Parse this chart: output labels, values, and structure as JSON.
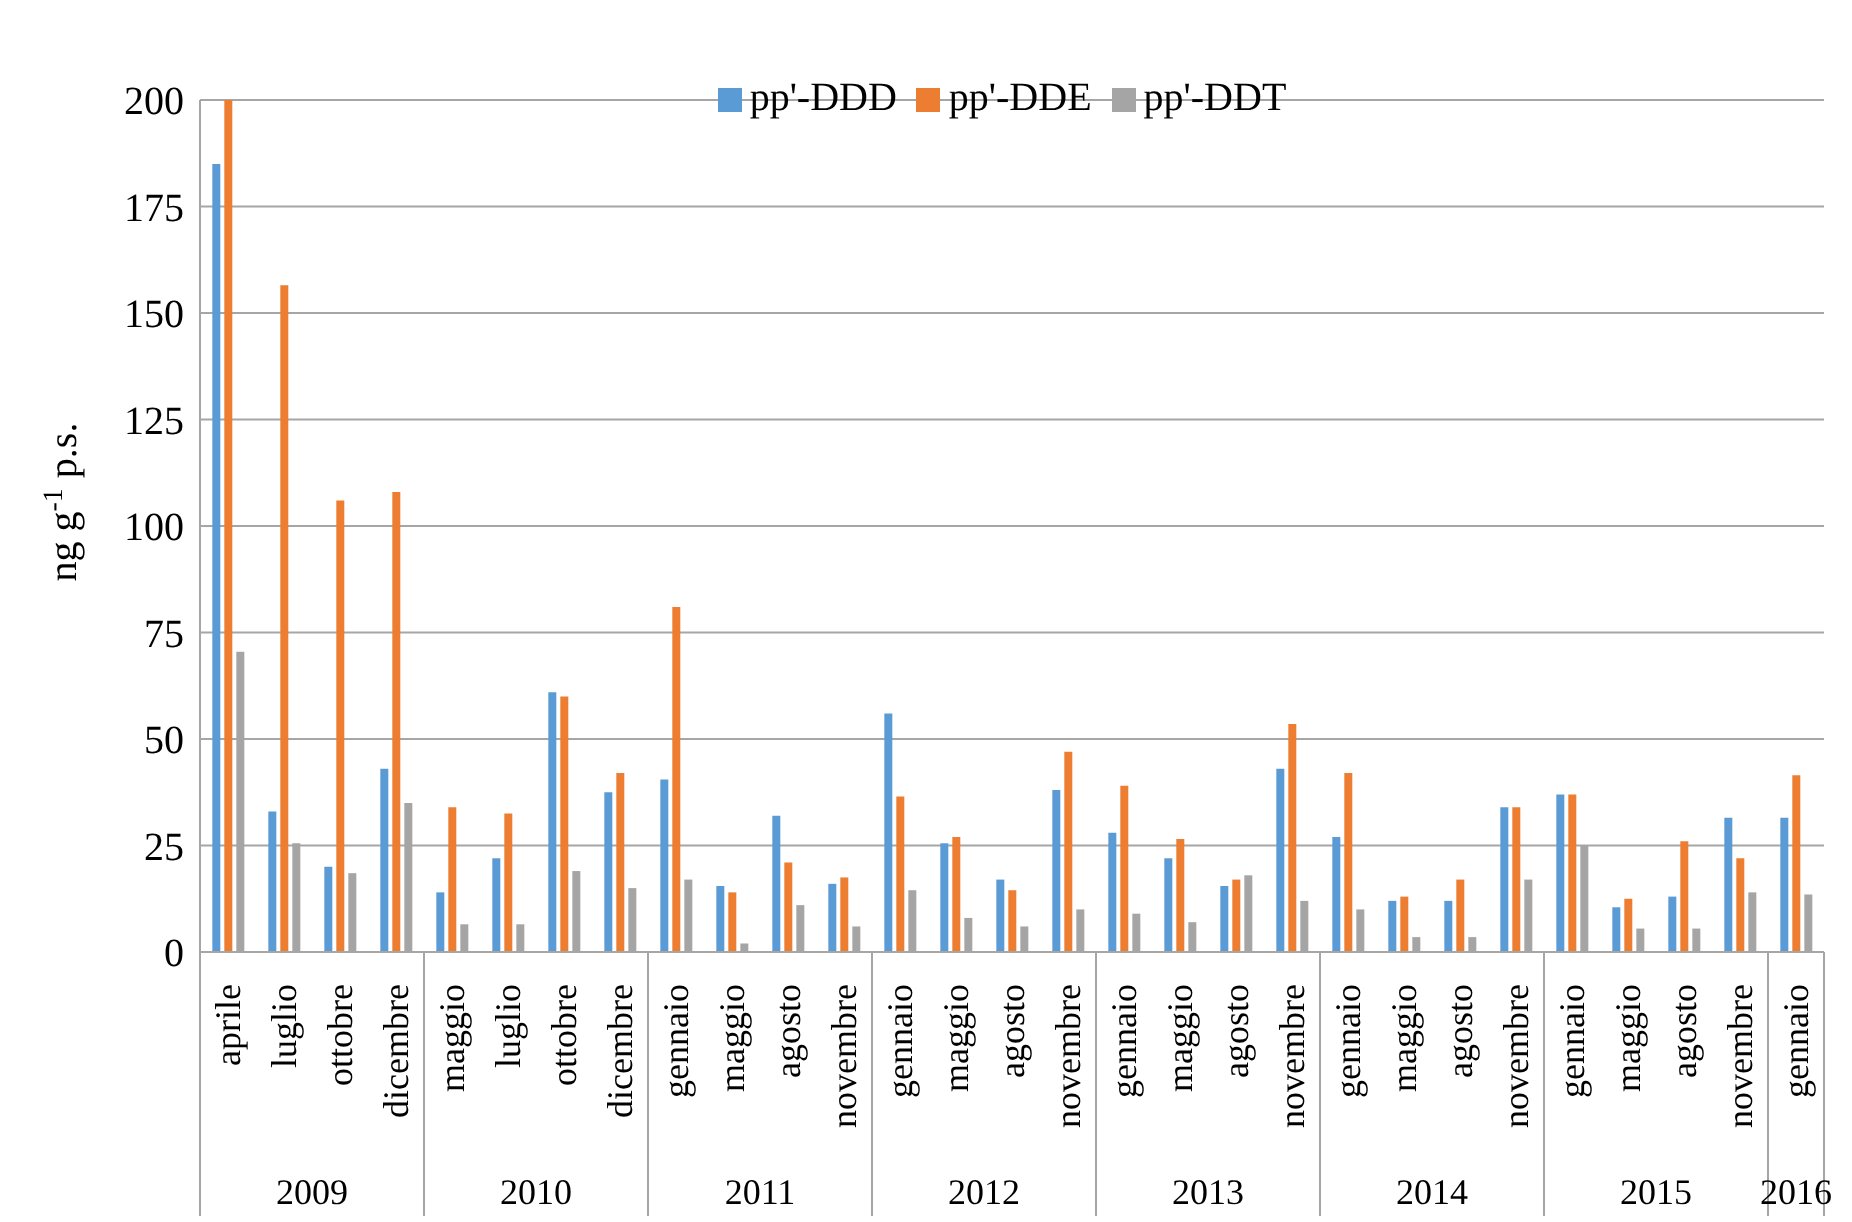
{
  "chart_data": {
    "type": "bar",
    "ylabel": "ng g$^{-1}$ p.s.",
    "categories": [
      "aprile",
      "luglio",
      "ottobre",
      "dicembre",
      "maggio",
      "luglio",
      "ottobre",
      "dicembre",
      "gennaio",
      "maggio",
      "agosto",
      "novembre",
      "gennaio",
      "maggio",
      "agosto",
      "novembre",
      "gennaio",
      "maggio",
      "agosto",
      "novembre",
      "gennaio",
      "maggio",
      "agosto",
      "novembre",
      "gennaio",
      "maggio",
      "agosto",
      "novembre",
      "gennaio"
    ],
    "series": [
      {
        "name": "pp'-DDD",
        "color": "#5b9bd5",
        "values": [
          185,
          33,
          20,
          43,
          14,
          22,
          61,
          37.5,
          40.5,
          15.5,
          32,
          16,
          56,
          25.5,
          17,
          38,
          28,
          22,
          15.5,
          43,
          27,
          12,
          12,
          34,
          37,
          10.5,
          13,
          31.5,
          31.5
        ]
      },
      {
        "name": "pp'-DDE",
        "color": "#ed7d31",
        "values": [
          200,
          156.5,
          106,
          108,
          34,
          32.5,
          60,
          42,
          81,
          14,
          21,
          17.5,
          36.5,
          27,
          14.5,
          47,
          39,
          26.5,
          17,
          53.5,
          42,
          13,
          17,
          34,
          37,
          12.5,
          26,
          22,
          41.5
        ]
      },
      {
        "name": "pp'-DDT",
        "color": "#a5a5a5",
        "values": [
          70.5,
          25.5,
          18.5,
          35,
          6.5,
          6.5,
          19,
          15,
          17,
          2,
          11,
          6,
          14.5,
          8,
          6,
          10,
          9,
          7,
          18,
          12,
          10,
          3.5,
          3.5,
          17,
          25,
          5.5,
          5.5,
          14,
          13.5
        ]
      }
    ],
    "annotations": [
      "2009",
      "2010",
      "2011",
      "2012",
      "2013",
      "2014",
      "2015",
      "2016"
    ],
    "ylim": [
      0,
      200
    ],
    "yticks": [
      0,
      25,
      50,
      75,
      100,
      125,
      150,
      175,
      200
    ],
    "grid": "y",
    "legend": "top"
  }
}
